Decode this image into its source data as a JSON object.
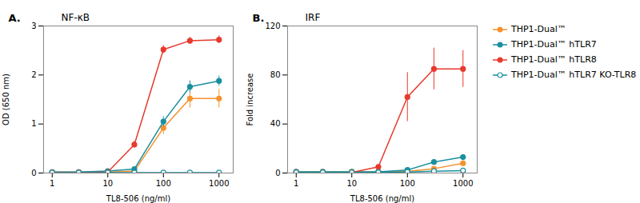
{
  "chart_data": [
    {
      "type": "line",
      "title": "NF-κB",
      "annotations": [
        "A."
      ],
      "xlabel": "TL8-506 (ng/ml)",
      "ylabel": "OD (650 nm)",
      "log": "x",
      "x": [
        1,
        3,
        10,
        30,
        100,
        300,
        1000
      ],
      "xlim": [
        0.7,
        1800
      ],
      "xticks": [
        1,
        10,
        100,
        1000
      ],
      "ylim": [
        0,
        3
      ],
      "yticks": [
        0,
        1,
        2,
        3
      ],
      "series": [
        {
          "name": "THP1-Dual™",
          "color": "#f5922f",
          "marker": "circle",
          "values": [
            0.02,
            0.02,
            0.02,
            0.04,
            0.92,
            1.52,
            1.52
          ],
          "yerr": [
            0.01,
            0.01,
            0.01,
            0.02,
            0.13,
            0.19,
            0.19
          ]
        },
        {
          "name": "THP1-Dual™ hTLR7",
          "color": "#1a8f9e",
          "marker": "circle",
          "values": [
            0.02,
            0.02,
            0.04,
            0.08,
            1.05,
            1.76,
            1.88
          ],
          "yerr": [
            0.01,
            0.01,
            0.01,
            0.02,
            0.1,
            0.12,
            0.1
          ]
        },
        {
          "name": "THP1-Dual™ hTLR8",
          "color": "#e8392d",
          "marker": "circle",
          "values": [
            0.01,
            0.01,
            0.02,
            0.58,
            2.52,
            2.7,
            2.72
          ],
          "yerr": [
            0.01,
            0.01,
            0.01,
            0.07,
            0.08,
            0.07,
            0.08
          ]
        },
        {
          "name": "THP1-Dual™ hTLR7 KO-TLR8",
          "color": "#1a8f9e",
          "marker": "open_circle",
          "values": [
            0.01,
            0.01,
            0.01,
            0.01,
            0.01,
            0.01,
            0.01
          ],
          "yerr": [
            0.003,
            0.003,
            0.003,
            0.003,
            0.003,
            0.003,
            0.003
          ]
        }
      ]
    },
    {
      "type": "line",
      "title": "IRF",
      "annotations": [
        "B."
      ],
      "xlabel": "TL8-506 (ng/ml)",
      "ylabel": "Fold increase",
      "log": "x",
      "x": [
        1,
        3,
        10,
        30,
        100,
        300,
        1000
      ],
      "xlim": [
        0.7,
        1800
      ],
      "xticks": [
        1,
        10,
        100,
        1000
      ],
      "ylim": [
        0,
        120
      ],
      "yticks": [
        0,
        40,
        80,
        120
      ],
      "legend": "right",
      "series": [
        {
          "name": "THP1-Dual™",
          "color": "#f5922f",
          "marker": "circle",
          "values": [
            1.0,
            1.0,
            1.0,
            1.0,
            1.5,
            3.5,
            8.0
          ],
          "yerr": [
            0.3,
            0.3,
            0.3,
            0.3,
            0.5,
            1.0,
            2.0
          ]
        },
        {
          "name": "THP1-Dual™ hTLR7",
          "color": "#1a8f9e",
          "marker": "circle",
          "values": [
            1.0,
            1.0,
            1.0,
            1.0,
            2.5,
            9.0,
            13.0
          ],
          "yerr": [
            0.3,
            0.3,
            0.3,
            0.3,
            0.8,
            1.5,
            2.0
          ]
        },
        {
          "name": "THP1-Dual™ hTLR8",
          "color": "#e8392d",
          "marker": "circle",
          "values": [
            0.5,
            0.5,
            0.5,
            5.0,
            62.0,
            85.0,
            85.0
          ],
          "yerr": [
            0.2,
            0.2,
            0.2,
            1.5,
            20.0,
            17.0,
            15.0
          ]
        },
        {
          "name": "THP1-Dual™ hTLR7 KO-TLR8",
          "color": "#1a8f9e",
          "marker": "open_circle",
          "values": [
            0.5,
            0.5,
            0.5,
            0.5,
            0.8,
            1.5,
            2.0
          ],
          "yerr": [
            0.2,
            0.2,
            0.2,
            0.2,
            0.2,
            0.3,
            0.4
          ]
        }
      ]
    }
  ]
}
